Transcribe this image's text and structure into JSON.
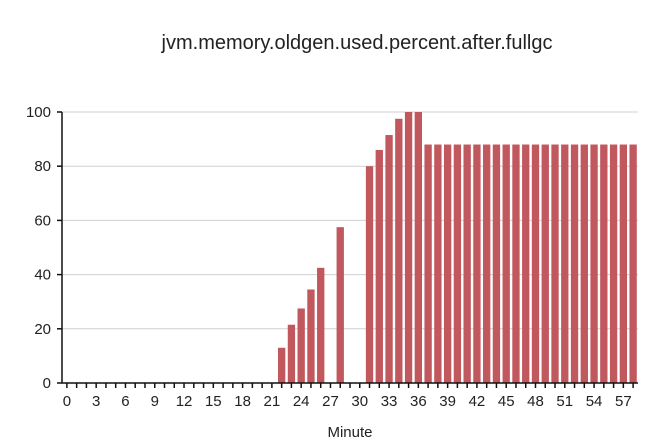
{
  "chart_data": {
    "type": "bar",
    "title": "jvm.memory.oldgen.used.percent.after.fullgc",
    "xlabel": "Minute",
    "ylabel": "",
    "ylim": [
      0,
      100
    ],
    "yticks": [
      0,
      20,
      40,
      60,
      80,
      100
    ],
    "xticks": [
      0,
      3,
      6,
      9,
      12,
      15,
      18,
      21,
      24,
      27,
      30,
      33,
      36,
      39,
      42,
      45,
      48,
      51,
      54,
      57
    ],
    "grid": true,
    "bar_color": "#c1585e",
    "x": [
      0,
      1,
      2,
      3,
      4,
      5,
      6,
      7,
      8,
      9,
      10,
      11,
      12,
      13,
      14,
      15,
      16,
      17,
      18,
      19,
      20,
      21,
      22,
      23,
      24,
      25,
      26,
      27,
      28,
      29,
      30,
      31,
      32,
      33,
      34,
      35,
      36,
      37,
      38,
      39,
      40,
      41,
      42,
      43,
      44,
      45,
      46,
      47,
      48,
      49,
      50,
      51,
      52,
      53,
      54,
      55,
      56,
      57,
      58
    ],
    "values": [
      0,
      0,
      0,
      0,
      0,
      0,
      0,
      0,
      0,
      0,
      0,
      0,
      0,
      0,
      0,
      0,
      0,
      0,
      0,
      0,
      0,
      0,
      13,
      21.5,
      27.5,
      34.5,
      42.5,
      0,
      57.5,
      0,
      0,
      80,
      86,
      91.5,
      97.5,
      100,
      100,
      88,
      88,
      88,
      88,
      88,
      88,
      88,
      88,
      88,
      88,
      88,
      88,
      88,
      88,
      88,
      88,
      88,
      88,
      88,
      88,
      88,
      88
    ]
  }
}
